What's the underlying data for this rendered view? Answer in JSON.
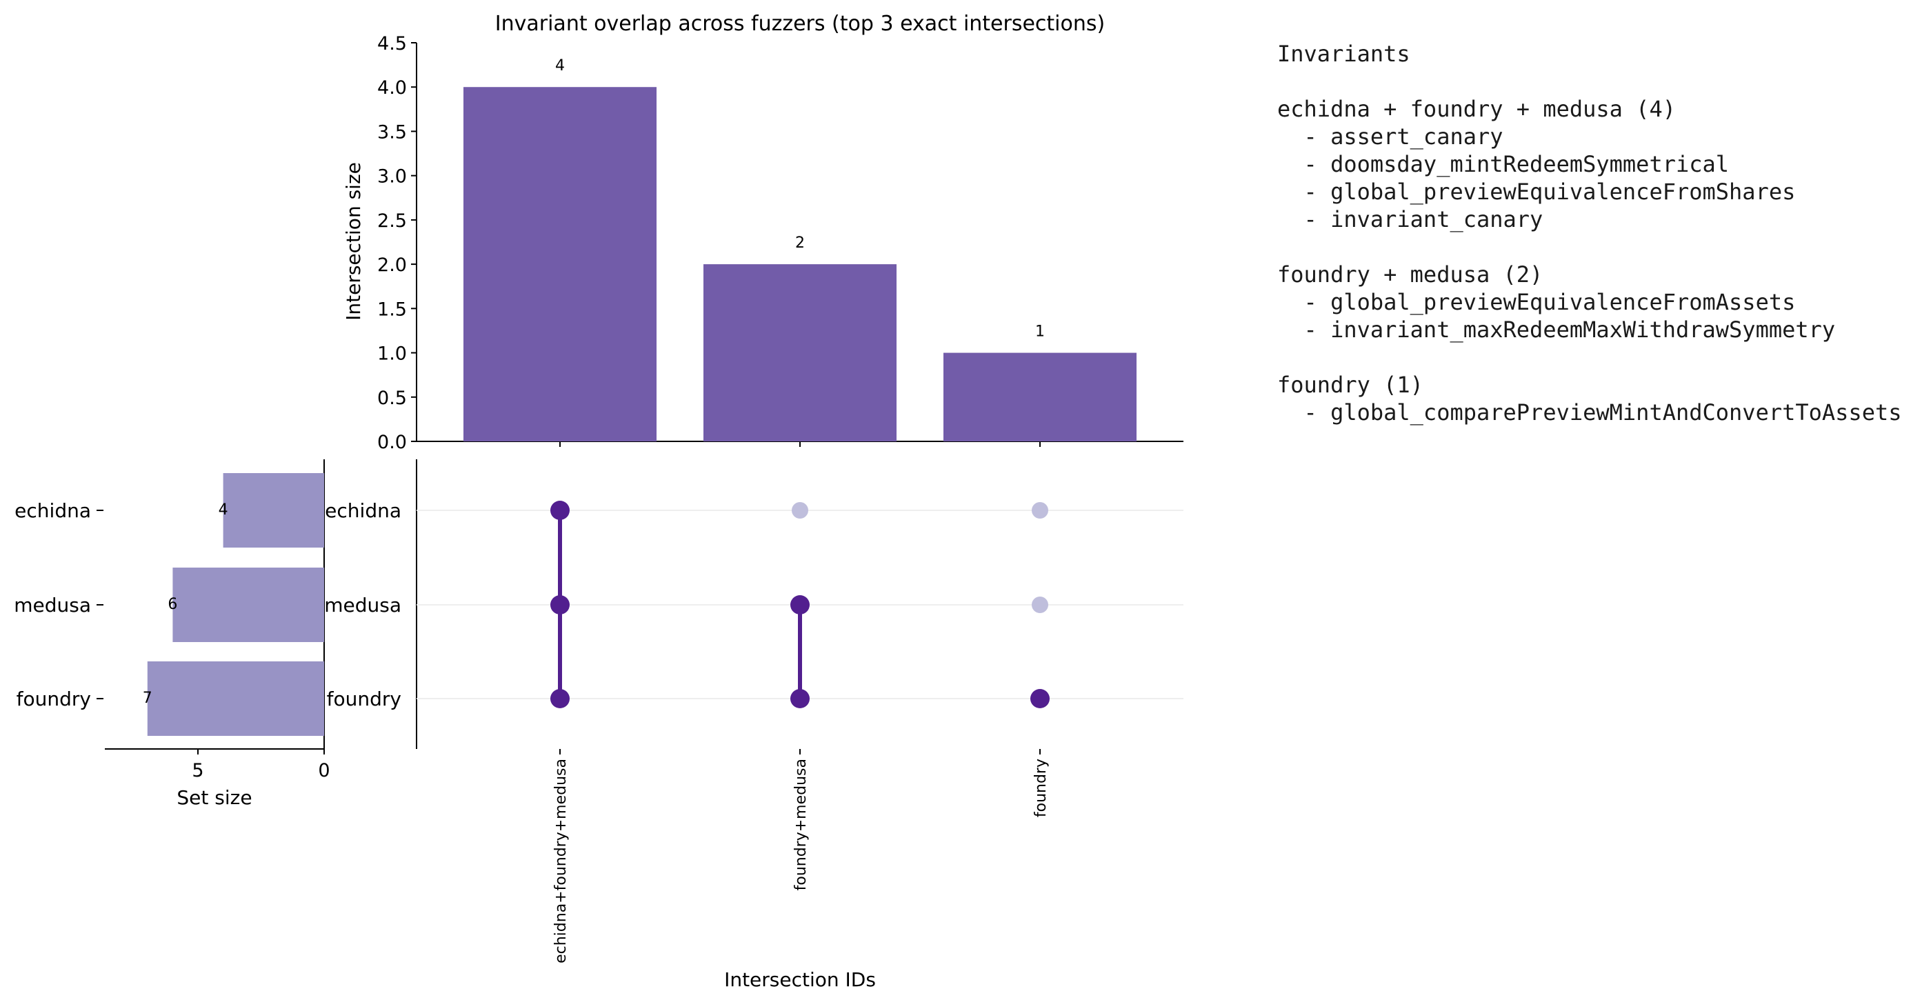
{
  "chart_data": {
    "type": "upset",
    "title": "Invariant overlap across fuzzers (top 3 exact intersections)",
    "intersections": {
      "ids": [
        "echidna+foundry+medusa",
        "foundry+medusa",
        "foundry"
      ],
      "sizes": [
        4,
        2,
        1
      ],
      "ylabel": "Intersection size",
      "xlabel": "Intersection IDs",
      "ylim": [
        0,
        4.5
      ],
      "yticks": [
        "0.0",
        "0.5",
        "1.0",
        "1.5",
        "2.0",
        "2.5",
        "3.0",
        "3.5",
        "4.0",
        "4.5"
      ],
      "members": [
        [
          "echidna",
          "medusa",
          "foundry"
        ],
        [
          "medusa",
          "foundry"
        ],
        [
          "foundry"
        ]
      ]
    },
    "sets": {
      "names": [
        "echidna",
        "medusa",
        "foundry"
      ],
      "sizes": [
        4,
        6,
        7
      ],
      "xlabel": "Set size",
      "xticks": [
        "5",
        "0"
      ]
    },
    "colors": {
      "bar": "#725ca9",
      "set_bar": "#9893c5",
      "dot_on": "#521f8f",
      "dot_off": "#bfbedc",
      "axis": "#000000"
    }
  },
  "invariants_panel": {
    "heading": "Invariants",
    "groups": [
      {
        "label": "echidna + foundry + medusa (4)",
        "items": [
          "assert_canary",
          "doomsday_mintRedeemSymmetrical",
          "global_previewEquivalenceFromShares",
          "invariant_canary"
        ]
      },
      {
        "label": "foundry + medusa (2)",
        "items": [
          "global_previewEquivalenceFromAssets",
          "invariant_maxRedeemMaxWithdrawSymmetry"
        ]
      },
      {
        "label": "foundry (1)",
        "items": [
          "global_comparePreviewMintAndConvertToAssets"
        ]
      }
    ]
  }
}
